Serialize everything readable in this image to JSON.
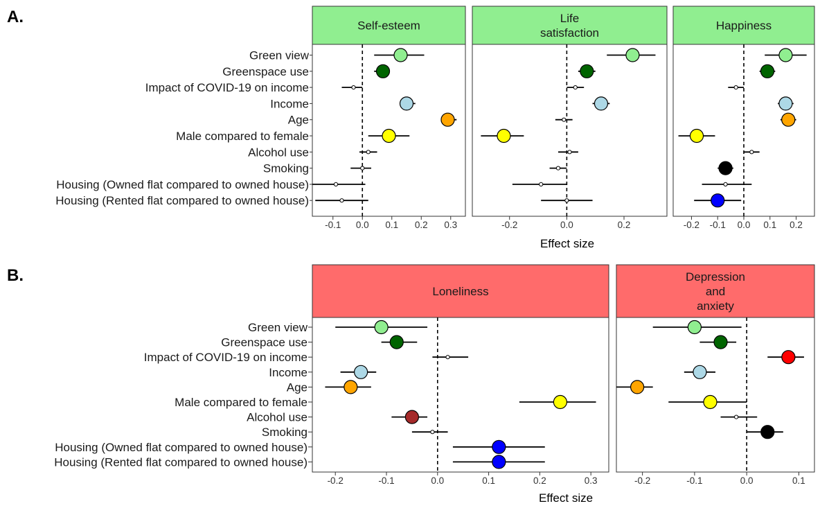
{
  "chart_data": [
    {
      "type": "scatter",
      "panel_label": "A.",
      "xlabel": "Effect size",
      "strip_color": "#90EE90",
      "legend": "none",
      "categories": [
        "Green view",
        "Greenspace use",
        "Impact of COVID-19 on income",
        "Income",
        "Age",
        "Male compared to female",
        "Alcohol use",
        "Smoking",
        "Housing (Owned flat compared to owned house)",
        "Housing (Rented flat compared to owned house)"
      ],
      "facets": [
        {
          "title": [
            "Self-esteem"
          ],
          "xlim": [
            -0.17,
            0.35
          ],
          "ticks": [
            -0.1,
            0.0,
            0.1,
            0.2,
            0.3
          ],
          "tick_labels": [
            "-0.1",
            "0.0",
            "0.1",
            "0.2",
            "0.3"
          ],
          "points": [
            {
              "estimate": 0.13,
              "lower": 0.04,
              "upper": 0.21,
              "color": "#90EE90",
              "significant": true
            },
            {
              "estimate": 0.07,
              "lower": 0.04,
              "upper": 0.09,
              "color": "#006400",
              "significant": true
            },
            {
              "estimate": -0.03,
              "lower": -0.07,
              "upper": 0.0,
              "color": "#ffffff",
              "significant": false
            },
            {
              "estimate": 0.15,
              "lower": 0.13,
              "upper": 0.18,
              "color": "#ADD8E6",
              "significant": true
            },
            {
              "estimate": 0.29,
              "lower": 0.27,
              "upper": 0.32,
              "color": "#FFA500",
              "significant": true
            },
            {
              "estimate": 0.09,
              "lower": 0.02,
              "upper": 0.16,
              "color": "#FFFF00",
              "significant": true
            },
            {
              "estimate": 0.02,
              "lower": -0.01,
              "upper": 0.05,
              "color": "#ffffff",
              "significant": false
            },
            {
              "estimate": 0.0,
              "lower": -0.04,
              "upper": 0.03,
              "color": "#ffffff",
              "significant": false
            },
            {
              "estimate": -0.09,
              "lower": -0.17,
              "upper": 0.01,
              "color": "#ffffff",
              "significant": false
            },
            {
              "estimate": -0.07,
              "lower": -0.16,
              "upper": 0.02,
              "color": "#ffffff",
              "significant": false
            }
          ]
        },
        {
          "title": [
            "Life",
            "satisfaction"
          ],
          "xlim": [
            -0.33,
            0.35
          ],
          "ticks": [
            -0.2,
            0.0,
            0.2
          ],
          "tick_labels": [
            "-0.2",
            "0.0",
            "0.2"
          ],
          "points": [
            {
              "estimate": 0.23,
              "lower": 0.14,
              "upper": 0.31,
              "color": "#90EE90",
              "significant": true
            },
            {
              "estimate": 0.07,
              "lower": 0.04,
              "upper": 0.1,
              "color": "#006400",
              "significant": true
            },
            {
              "estimate": 0.03,
              "lower": 0.0,
              "upper": 0.06,
              "color": "#ffffff",
              "significant": false
            },
            {
              "estimate": 0.12,
              "lower": 0.09,
              "upper": 0.15,
              "color": "#ADD8E6",
              "significant": true
            },
            {
              "estimate": -0.01,
              "lower": -0.04,
              "upper": 0.02,
              "color": "#ffffff",
              "significant": false
            },
            {
              "estimate": -0.22,
              "lower": -0.3,
              "upper": -0.15,
              "color": "#FFFF00",
              "significant": true
            },
            {
              "estimate": 0.01,
              "lower": -0.03,
              "upper": 0.04,
              "color": "#ffffff",
              "significant": false
            },
            {
              "estimate": -0.03,
              "lower": -0.06,
              "upper": 0.0,
              "color": "#ffffff",
              "significant": false
            },
            {
              "estimate": -0.09,
              "lower": -0.19,
              "upper": 0.0,
              "color": "#ffffff",
              "significant": false
            },
            {
              "estimate": 0.0,
              "lower": -0.09,
              "upper": 0.09,
              "color": "#ffffff",
              "significant": false
            }
          ]
        },
        {
          "title": [
            "Happiness"
          ],
          "xlim": [
            -0.27,
            0.27
          ],
          "ticks": [
            -0.2,
            -0.1,
            0.0,
            0.1,
            0.2
          ],
          "tick_labels": [
            "-0.2",
            "-0.1",
            "0.0",
            "0.1",
            "0.2"
          ],
          "points": [
            {
              "estimate": 0.16,
              "lower": 0.08,
              "upper": 0.24,
              "color": "#90EE90",
              "significant": true
            },
            {
              "estimate": 0.09,
              "lower": 0.06,
              "upper": 0.12,
              "color": "#006400",
              "significant": true
            },
            {
              "estimate": -0.03,
              "lower": -0.06,
              "upper": 0.0,
              "color": "#ffffff",
              "significant": false
            },
            {
              "estimate": 0.16,
              "lower": 0.13,
              "upper": 0.19,
              "color": "#ADD8E6",
              "significant": true
            },
            {
              "estimate": 0.17,
              "lower": 0.14,
              "upper": 0.2,
              "color": "#FFA500",
              "significant": true
            },
            {
              "estimate": -0.18,
              "lower": -0.25,
              "upper": -0.11,
              "color": "#FFFF00",
              "significant": true
            },
            {
              "estimate": 0.03,
              "lower": 0.0,
              "upper": 0.06,
              "color": "#ffffff",
              "significant": false
            },
            {
              "estimate": -0.07,
              "lower": -0.1,
              "upper": -0.04,
              "color": "#000000",
              "significant": true
            },
            {
              "estimate": -0.07,
              "lower": -0.16,
              "upper": 0.03,
              "color": "#ffffff",
              "significant": false
            },
            {
              "estimate": -0.1,
              "lower": -0.19,
              "upper": -0.01,
              "color": "#0000FF",
              "significant": true
            }
          ]
        }
      ]
    },
    {
      "type": "scatter",
      "panel_label": "B.",
      "xlabel": "Effect size",
      "strip_color": "#FF6B6B",
      "legend": "none",
      "categories": [
        "Green view",
        "Greenspace use",
        "Impact of COVID-19 on income",
        "Income",
        "Age",
        "Male compared to female",
        "Alcohol use",
        "Smoking",
        "Housing (Owned flat compared to owned house)",
        "Housing (Rented flat compared to owned house)"
      ],
      "facets": [
        {
          "title": [
            "Loneliness"
          ],
          "xlim": [
            -0.245,
            0.335
          ],
          "ticks": [
            -0.2,
            -0.1,
            0.0,
            0.1,
            0.2,
            0.3
          ],
          "tick_labels": [
            "-0.2",
            "-0.1",
            "0.0",
            "0.1",
            "0.2",
            "0.3"
          ],
          "points": [
            {
              "estimate": -0.11,
              "lower": -0.2,
              "upper": -0.02,
              "color": "#90EE90",
              "significant": true
            },
            {
              "estimate": -0.08,
              "lower": -0.11,
              "upper": -0.04,
              "color": "#006400",
              "significant": true
            },
            {
              "estimate": 0.02,
              "lower": -0.01,
              "upper": 0.06,
              "color": "#ffffff",
              "significant": false
            },
            {
              "estimate": -0.15,
              "lower": -0.19,
              "upper": -0.12,
              "color": "#ADD8E6",
              "significant": true
            },
            {
              "estimate": -0.17,
              "lower": -0.22,
              "upper": -0.13,
              "color": "#FFA500",
              "significant": true
            },
            {
              "estimate": 0.24,
              "lower": 0.16,
              "upper": 0.31,
              "color": "#FFFF00",
              "significant": true
            },
            {
              "estimate": -0.05,
              "lower": -0.09,
              "upper": -0.02,
              "color": "#A52A2A",
              "significant": true
            },
            {
              "estimate": -0.01,
              "lower": -0.05,
              "upper": 0.02,
              "color": "#ffffff",
              "significant": false
            },
            {
              "estimate": 0.12,
              "lower": 0.03,
              "upper": 0.21,
              "color": "#0000FF",
              "significant": true
            },
            {
              "estimate": 0.12,
              "lower": 0.03,
              "upper": 0.21,
              "color": "#0000FF",
              "significant": true
            }
          ]
        },
        {
          "title": [
            "Depression",
            "and",
            "anxiety"
          ],
          "xlim": [
            -0.25,
            0.13
          ],
          "ticks": [
            -0.2,
            -0.1,
            0.0,
            0.1
          ],
          "tick_labels": [
            "-0.2",
            "-0.1",
            "0.0",
            "0.1"
          ],
          "points": [
            {
              "estimate": -0.1,
              "lower": -0.18,
              "upper": -0.01,
              "color": "#90EE90",
              "significant": true
            },
            {
              "estimate": -0.05,
              "lower": -0.09,
              "upper": -0.02,
              "color": "#006400",
              "significant": true
            },
            {
              "estimate": 0.08,
              "lower": 0.04,
              "upper": 0.11,
              "color": "#FF0000",
              "significant": true
            },
            {
              "estimate": -0.09,
              "lower": -0.12,
              "upper": -0.06,
              "color": "#ADD8E6",
              "significant": true
            },
            {
              "estimate": -0.21,
              "lower": -0.25,
              "upper": -0.18,
              "color": "#FFA500",
              "significant": true
            },
            {
              "estimate": -0.07,
              "lower": -0.15,
              "upper": 0.0,
              "color": "#FFFF00",
              "significant": true
            },
            {
              "estimate": -0.02,
              "lower": -0.05,
              "upper": 0.02,
              "color": "#ffffff",
              "significant": false
            },
            {
              "estimate": 0.04,
              "lower": 0.0,
              "upper": 0.07,
              "color": "#000000",
              "significant": true
            },
            null,
            null
          ]
        }
      ]
    }
  ]
}
